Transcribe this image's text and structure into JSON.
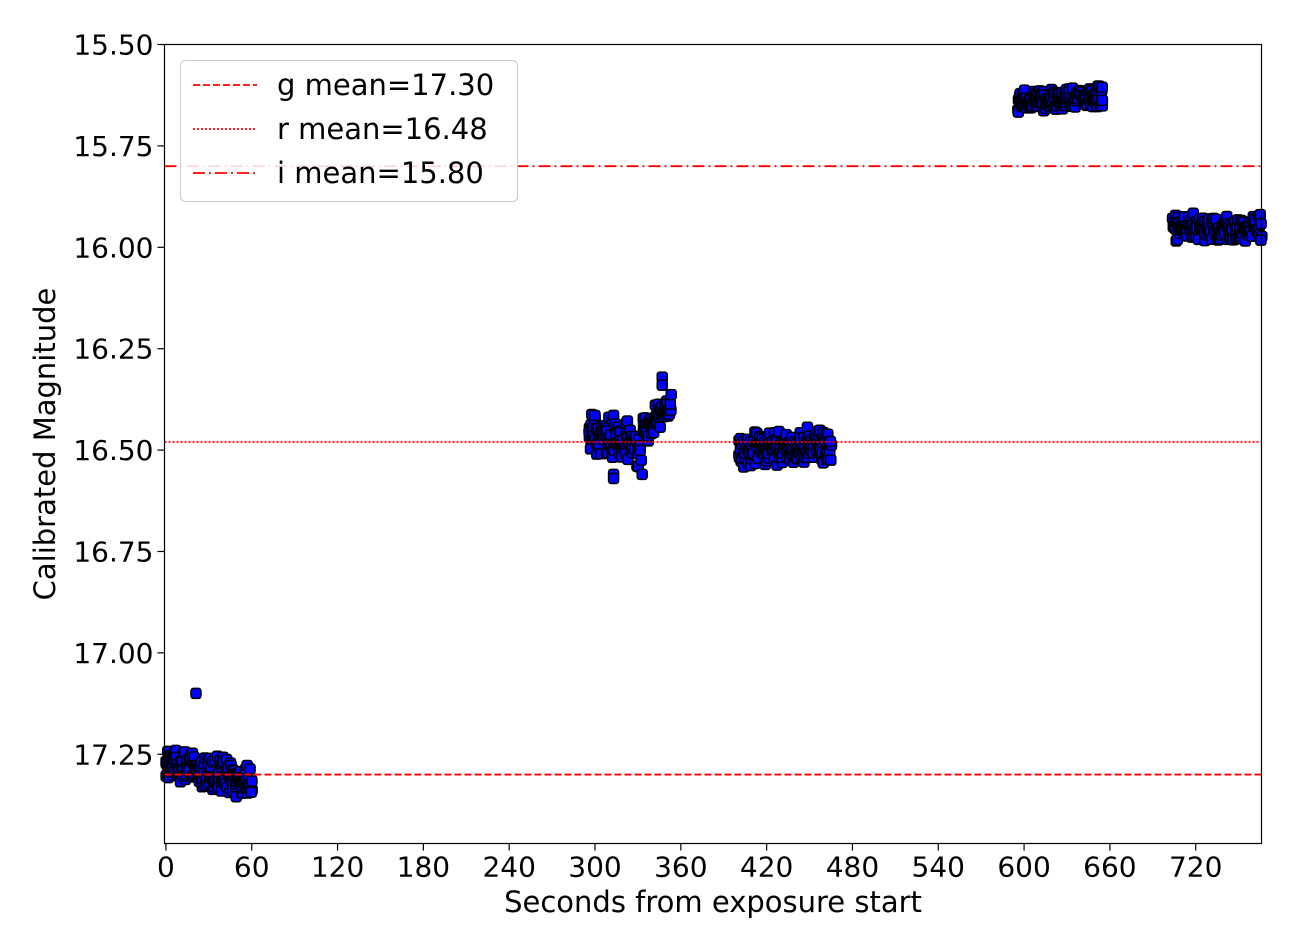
{
  "chart_data": {
    "type": "scatter",
    "title": "",
    "xlabel": "Seconds from exposure start",
    "ylabel": "Calibrated Magnitude",
    "xlim": [
      -1,
      766
    ],
    "ylim": [
      17.47,
      15.5
    ],
    "y_inverted": true,
    "grid": false,
    "legend_position": "top-left",
    "xticks": [
      0,
      60,
      120,
      180,
      240,
      300,
      360,
      420,
      480,
      540,
      600,
      660,
      720
    ],
    "yticks": [
      15.5,
      15.75,
      16.0,
      16.25,
      16.5,
      16.75,
      17.0,
      17.25
    ],
    "xtick_labels": [
      "0",
      "60",
      "120",
      "180",
      "240",
      "300",
      "360",
      "420",
      "480",
      "540",
      "600",
      "660",
      "720"
    ],
    "ytick_labels": [
      "15.50",
      "15.75",
      "16.00",
      "16.25",
      "16.50",
      "16.75",
      "17.00",
      "17.25"
    ],
    "marker_color": "#0000ff",
    "marker_edge_color": "#000000",
    "line_color": "#ff0000",
    "reference_lines": [
      {
        "label": "g mean=17.30",
        "value": 17.3,
        "style": "dashed"
      },
      {
        "label": "r mean=16.48",
        "value": 16.48,
        "style": "dotted"
      },
      {
        "label": "i mean=15.80",
        "value": 15.8,
        "style": "dashdot"
      }
    ],
    "clusters": [
      {
        "band": "g",
        "x_start": 0,
        "x_end": 60,
        "y_start": 17.27,
        "y_end": 17.32,
        "spread": 0.05,
        "n": 60
      },
      {
        "band": "r",
        "x_start": 296,
        "x_end": 332,
        "y_start": 16.45,
        "y_end": 16.5,
        "spread": 0.06,
        "n": 37
      },
      {
        "band": "r",
        "x_start": 334,
        "x_end": 353,
        "y_start": 16.45,
        "y_end": 16.39,
        "spread": 0.04,
        "n": 19
      },
      {
        "band": "r",
        "x_start": 401,
        "x_end": 465,
        "y_start": 16.5,
        "y_end": 16.49,
        "spread": 0.05,
        "n": 64
      },
      {
        "band": "i",
        "x_start": 596,
        "x_end": 655,
        "y_start": 15.64,
        "y_end": 15.63,
        "spread": 0.03,
        "n": 60
      },
      {
        "band": "i",
        "x_start": 704,
        "x_end": 766,
        "y_start": 15.95,
        "y_end": 15.95,
        "spread": 0.04,
        "n": 62
      }
    ],
    "outliers": [
      {
        "x": 21,
        "y": 17.1
      },
      {
        "x": 313,
        "y": 16.56
      },
      {
        "x": 313,
        "y": 16.57
      },
      {
        "x": 333,
        "y": 16.56
      },
      {
        "x": 347,
        "y": 16.32
      },
      {
        "x": 347,
        "y": 16.34
      }
    ]
  }
}
